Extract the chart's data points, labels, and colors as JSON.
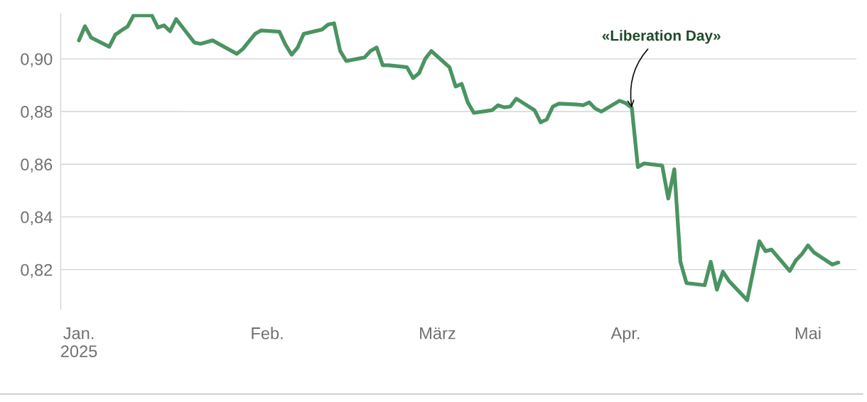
{
  "chart_data": {
    "type": "line",
    "x": [
      "2025-01-01",
      "2025-01-02",
      "2025-01-03",
      "2025-01-06",
      "2025-01-07",
      "2025-01-08",
      "2025-01-09",
      "2025-01-10",
      "2025-01-13",
      "2025-01-14",
      "2025-01-15",
      "2025-01-16",
      "2025-01-17",
      "2025-01-20",
      "2025-01-21",
      "2025-01-23",
      "2025-01-27",
      "2025-01-28",
      "2025-01-30",
      "2025-01-31",
      "2025-02-03",
      "2025-02-04",
      "2025-02-05",
      "2025-02-06",
      "2025-02-07",
      "2025-02-10",
      "2025-02-11",
      "2025-02-12",
      "2025-02-13",
      "2025-02-14",
      "2025-02-17",
      "2025-02-18",
      "2025-02-19",
      "2025-02-20",
      "2025-02-21",
      "2025-02-24",
      "2025-02-25",
      "2025-02-26",
      "2025-02-27",
      "2025-02-28",
      "2025-03-03",
      "2025-03-04",
      "2025-03-05",
      "2025-03-06",
      "2025-03-07",
      "2025-03-10",
      "2025-03-11",
      "2025-03-12",
      "2025-03-13",
      "2025-03-14",
      "2025-03-17",
      "2025-03-18",
      "2025-03-19",
      "2025-03-20",
      "2025-03-21",
      "2025-03-24",
      "2025-03-25",
      "2025-03-26",
      "2025-03-27",
      "2025-03-28",
      "2025-03-31",
      "2025-04-01",
      "2025-04-02",
      "2025-04-03",
      "2025-04-04",
      "2025-04-07",
      "2025-04-08",
      "2025-04-09",
      "2025-04-10",
      "2025-04-11",
      "2025-04-14",
      "2025-04-15",
      "2025-04-16",
      "2025-04-17",
      "2025-04-18",
      "2025-04-21",
      "2025-04-23",
      "2025-04-24",
      "2025-04-25",
      "2025-04-28",
      "2025-04-29",
      "2025-04-30",
      "2025-05-01",
      "2025-05-02",
      "2025-05-05",
      "2025-05-06"
    ],
    "series": [
      {
        "color": "#4a9462",
        "values": [
          0.907,
          0.9124,
          0.9081,
          0.9046,
          0.9092,
          0.9108,
          0.9122,
          0.9165,
          0.9165,
          0.9119,
          0.9127,
          0.9105,
          0.9151,
          0.9062,
          0.9057,
          0.907,
          0.9019,
          0.9038,
          0.9095,
          0.9108,
          0.9103,
          0.9054,
          0.9016,
          0.9043,
          0.9095,
          0.9111,
          0.913,
          0.9135,
          0.903,
          0.8992,
          0.9005,
          0.903,
          0.9043,
          0.8976,
          0.8976,
          0.8968,
          0.8927,
          0.8946,
          0.9,
          0.903,
          0.8968,
          0.8895,
          0.8905,
          0.8835,
          0.8795,
          0.8805,
          0.8824,
          0.8816,
          0.8819,
          0.8849,
          0.8805,
          0.8759,
          0.877,
          0.8819,
          0.883,
          0.8827,
          0.8824,
          0.8835,
          0.8811,
          0.88,
          0.8841,
          0.8832,
          0.8814,
          0.8589,
          0.8603,
          0.8595,
          0.847,
          0.8581,
          0.823,
          0.8149,
          0.8141,
          0.823,
          0.8124,
          0.8192,
          0.8157,
          0.8084,
          0.8308,
          0.827,
          0.8276,
          0.8195,
          0.8235,
          0.8259,
          0.8292,
          0.8265,
          0.8219,
          0.8227
        ]
      }
    ],
    "xlim": [
      "2024-12-29",
      "2025-05-09"
    ],
    "ylim": [
      0.805,
      0.917
    ],
    "xticks": [
      {
        "value": "2025-01-01",
        "label": "Jan.\n2025"
      },
      {
        "value": "2025-02-01",
        "label": "Feb."
      },
      {
        "value": "2025-03-01",
        "label": "März"
      },
      {
        "value": "2025-04-01",
        "label": "Apr."
      },
      {
        "value": "2025-05-01",
        "label": "Mai"
      }
    ],
    "yticks": [
      {
        "value": 0.82,
        "label": "0,82"
      },
      {
        "value": 0.84,
        "label": "0,84"
      },
      {
        "value": 0.86,
        "label": "0,86"
      },
      {
        "value": 0.88,
        "label": "0,88"
      },
      {
        "value": 0.9,
        "label": "0,90"
      }
    ],
    "grid": "y",
    "marker": "none",
    "line_style": "solid",
    "annotations": [
      {
        "text": "«Liberation Day»",
        "x": "2025-04-02",
        "y": 0.8814
      }
    ]
  }
}
